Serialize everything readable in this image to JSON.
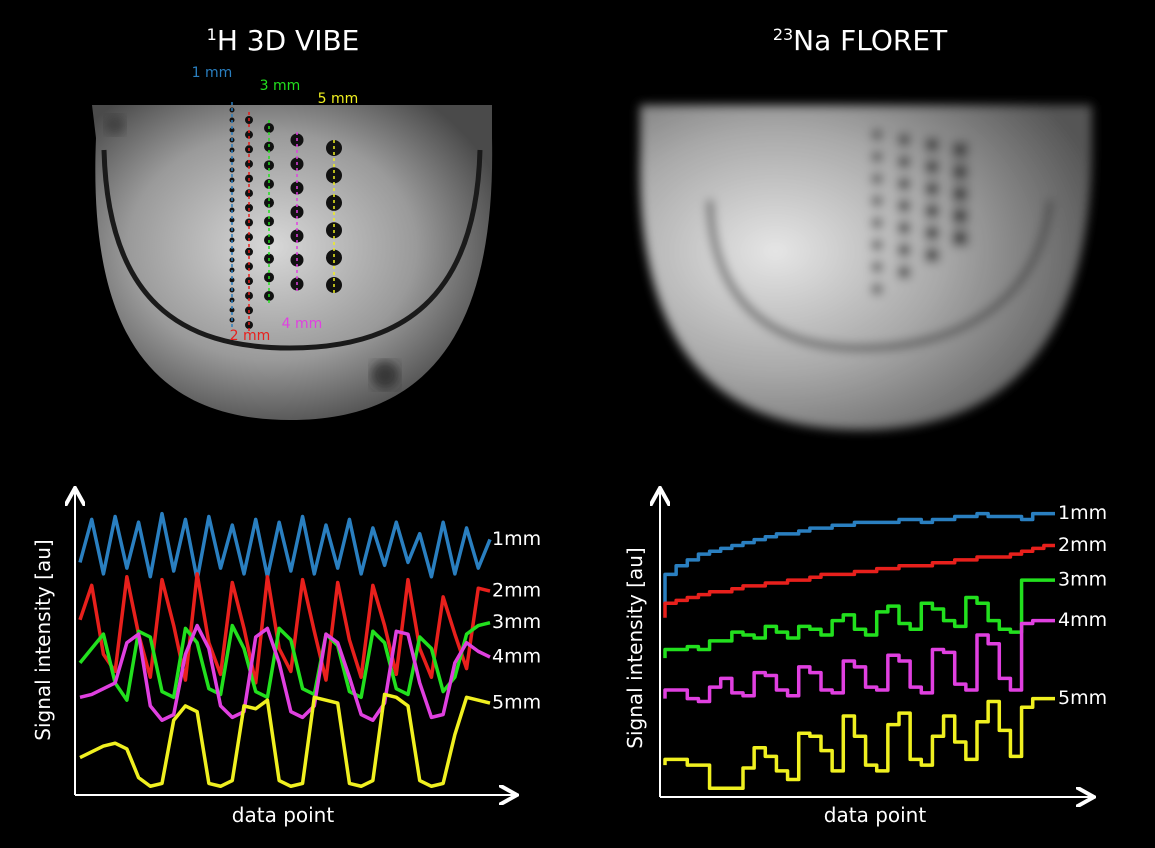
{
  "panels": [
    {
      "title": {
        "sup": "1",
        "text": "H 3D VIBE"
      },
      "annotations": [
        {
          "text": "1 mm",
          "color": "#2a7fc0"
        },
        {
          "text": "2 mm",
          "color": "#e8201c"
        },
        {
          "text": "3 mm",
          "color": "#22e01e"
        },
        {
          "text": "4 mm",
          "color": "#e040e0"
        },
        {
          "text": "5 mm",
          "color": "#f0f020"
        }
      ]
    },
    {
      "title": {
        "sup": "23",
        "text": "Na FLORET"
      }
    }
  ],
  "chart_data": [
    {
      "type": "line",
      "ylabel": "Signal intensity [au]",
      "xlabel": "data point",
      "ylim": [
        0,
        100
      ],
      "series": [
        {
          "name": "1mm",
          "color": "#2a7fc0",
          "values": [
            80,
            95,
            76,
            96,
            78,
            94,
            75,
            97,
            77,
            95,
            74,
            96,
            78,
            93,
            76,
            95,
            75,
            94,
            77,
            96,
            76,
            93,
            78,
            95,
            76,
            92,
            79,
            94,
            80,
            90,
            75,
            94,
            76,
            92,
            78,
            88
          ]
        },
        {
          "name": "2mm",
          "color": "#e8201c",
          "values": [
            60,
            72,
            48,
            42,
            75,
            55,
            40,
            74,
            58,
            39,
            76,
            52,
            41,
            73,
            57,
            38,
            75,
            50,
            42,
            74,
            56,
            39,
            73,
            53,
            40,
            72,
            58,
            41,
            74,
            50,
            40,
            68,
            55,
            43,
            71,
            70
          ]
        },
        {
          "name": "3mm",
          "color": "#22e01e",
          "values": [
            45,
            50,
            55,
            38,
            32,
            56,
            54,
            35,
            33,
            57,
            52,
            36,
            34,
            58,
            50,
            35,
            33,
            57,
            53,
            36,
            34,
            55,
            51,
            35,
            33,
            56,
            52,
            36,
            34,
            54,
            50,
            35,
            40,
            55,
            58,
            59
          ]
        },
        {
          "name": "4mm",
          "color": "#e040e0",
          "values": [
            33,
            34,
            36,
            38,
            52,
            55,
            30,
            25,
            27,
            48,
            58,
            50,
            30,
            26,
            28,
            54,
            57,
            45,
            28,
            26,
            30,
            55,
            52,
            40,
            27,
            25,
            31,
            56,
            55,
            38,
            26,
            27,
            45,
            52,
            49,
            47
          ]
        },
        {
          "name": "5mm",
          "color": "#f0f020",
          "values": [
            12,
            14,
            16,
            17,
            15,
            5,
            2,
            3,
            25,
            30,
            28,
            3,
            2,
            4,
            30,
            29,
            32,
            4,
            2,
            3,
            33,
            32,
            31,
            3,
            2,
            4,
            34,
            33,
            30,
            4,
            2,
            3,
            20,
            33,
            32,
            31
          ]
        }
      ]
    },
    {
      "type": "step",
      "ylabel": "Signal intensity [au]",
      "xlabel": "data point",
      "ylim": [
        0,
        100
      ],
      "series": [
        {
          "name": "1mm",
          "color": "#2a7fc0",
          "values": [
            66,
            76,
            79,
            81,
            83,
            84,
            85,
            86,
            87,
            88,
            89,
            90,
            90,
            91,
            92,
            92,
            93,
            93,
            94,
            94,
            94,
            94,
            95,
            95,
            94,
            95,
            95,
            96,
            96,
            97,
            96,
            96,
            96,
            95,
            97,
            97
          ]
        },
        {
          "name": "2mm",
          "color": "#e8201c",
          "values": [
            61,
            66,
            67,
            68,
            69,
            70,
            70,
            71,
            72,
            72,
            73,
            73,
            74,
            74,
            75,
            76,
            76,
            76,
            77,
            77,
            78,
            78,
            79,
            79,
            79,
            80,
            80,
            81,
            81,
            82,
            82,
            82,
            83,
            84,
            85,
            86
          ]
        },
        {
          "name": "3mm",
          "color": "#22e01e",
          "values": [
            47,
            50,
            50,
            51,
            50,
            53,
            53,
            56,
            55,
            54,
            58,
            56,
            54,
            58,
            57,
            55,
            60,
            62,
            57,
            55,
            63,
            65,
            59,
            57,
            66,
            64,
            60,
            58,
            68,
            66,
            60,
            57,
            56,
            74,
            74,
            74
          ]
        },
        {
          "name": "4mm",
          "color": "#e040e0",
          "values": [
            33,
            36,
            36,
            33,
            32,
            37,
            40,
            35,
            34,
            42,
            41,
            36,
            34,
            44,
            42,
            36,
            35,
            46,
            44,
            37,
            36,
            48,
            46,
            37,
            35,
            50,
            49,
            38,
            36,
            55,
            52,
            40,
            36,
            59,
            60,
            60
          ]
        },
        {
          "name": "5mm",
          "color": "#f0f020",
          "values": [
            10,
            12,
            12,
            10,
            10,
            2,
            2,
            2,
            9,
            16,
            13,
            8,
            5,
            21,
            20,
            15,
            8,
            27,
            20,
            10,
            8,
            24,
            28,
            12,
            10,
            20,
            27,
            18,
            12,
            25,
            32,
            22,
            13,
            30,
            33,
            33
          ]
        }
      ]
    }
  ]
}
